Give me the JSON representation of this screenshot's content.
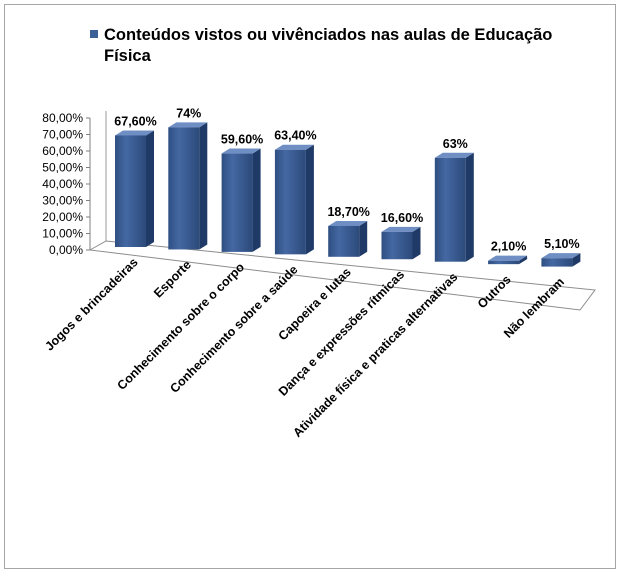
{
  "legend": {
    "line1": "Conteúdos vistos ou vivênciados nas aulas de Educação",
    "line2": "Física"
  },
  "chart_data": {
    "type": "bar",
    "title": "",
    "xlabel": "",
    "ylabel": "",
    "ylim": [
      0,
      80
    ],
    "yticks": [
      "0,00%",
      "10,00%",
      "20,00%",
      "30,00%",
      "40,00%",
      "50,00%",
      "60,00%",
      "70,00%",
      "80,00%"
    ],
    "legend_position": "top",
    "grid": false,
    "bar_color": "#3c5f96",
    "categories": [
      "Jogos e brincadeiras",
      "Esporte",
      "Conhecimento sobre o corpo",
      "Conhecimento sobre a saúde",
      "Capoeira e lutas",
      "Dança e expressões rítmicas",
      "Atividade física e praticas alternativas",
      "Outros",
      "Não lembram"
    ],
    "series": [
      {
        "name": "Conteúdos vistos ou vivênciados nas aulas de Educação Física",
        "values": [
          67.6,
          74,
          59.6,
          63.4,
          18.7,
          16.6,
          63,
          2.1,
          5.1
        ],
        "labels": [
          "67,60%",
          "74%",
          "59,60%",
          "63,40%",
          "18,70%",
          "16,60%",
          "63%",
          "2,10%",
          "5,10%"
        ]
      }
    ]
  }
}
